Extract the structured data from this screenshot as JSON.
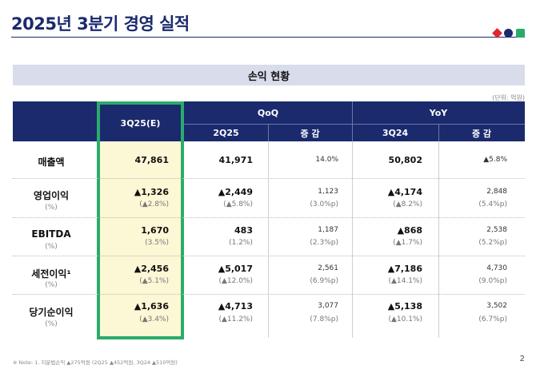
{
  "title": "2025년 3분기 경영 실적",
  "section_title": "손익 현황",
  "unit": "(단위: 억원)",
  "brand_colors": [
    "#e0262e",
    "#1a2a6c",
    "#2bab6b"
  ],
  "headers": {
    "current": "3Q25(E)",
    "qoq": "QoQ",
    "yoy": "YoY",
    "q2": "2Q25",
    "q2_change": "증 감",
    "q3": "3Q24",
    "q3_change": "증 감"
  },
  "rows": [
    {
      "label": "매출액",
      "sub": "",
      "cur": "47,861",
      "cur_sub": "",
      "q2": "41,971",
      "q2_sub": "",
      "q2c": "14.0%",
      "q2c_sub": "",
      "q3": "50,802",
      "q3_sub": "",
      "q3c": "▲5.8%",
      "q3c_sub": ""
    },
    {
      "label": "영업이익",
      "sub": "(%)",
      "cur": "▲1,326",
      "cur_sub": "(▲2.8%)",
      "q2": "▲2,449",
      "q2_sub": "(▲5.8%)",
      "q2c": "1,123",
      "q2c_sub": "(3.0%p)",
      "q3": "▲4,174",
      "q3_sub": "(▲8.2%)",
      "q3c": "2,848",
      "q3c_sub": "(5.4%p)"
    },
    {
      "label": "EBITDA",
      "sub": "(%)",
      "cur": "1,670",
      "cur_sub": "(3.5%)",
      "q2": "483",
      "q2_sub": "(1.2%)",
      "q2c": "1,187",
      "q2c_sub": "(2.3%p)",
      "q3": "▲868",
      "q3_sub": "(▲1.7%)",
      "q3c": "2,538",
      "q3c_sub": "(5.2%p)"
    },
    {
      "label": "세전이익¹",
      "sub": "(%)",
      "cur": "▲2,456",
      "cur_sub": "(▲5.1%)",
      "q2": "▲5,017",
      "q2_sub": "(▲12.0%)",
      "q2c": "2,561",
      "q2c_sub": "(6.9%p)",
      "q3": "▲7,186",
      "q3_sub": "(▲14.1%)",
      "q3c": "4,730",
      "q3c_sub": "(9.0%p)"
    },
    {
      "label": "당기순이익",
      "sub": "(%)",
      "cur": "▲1,636",
      "cur_sub": "(▲3.4%)",
      "q2": "▲4,713",
      "q2_sub": "(▲11.2%)",
      "q2c": "3,077",
      "q2c_sub": "(7.8%p)",
      "q3": "▲5,138",
      "q3_sub": "(▲10.1%)",
      "q3c": "3,502",
      "q3c_sub": "(6.7%p)"
    }
  ],
  "note": "※ Note: 1. 지분법손익 ▲275억원 (2Q25 ▲452억원, 3Q24 ▲510억원)",
  "page_number": "2"
}
